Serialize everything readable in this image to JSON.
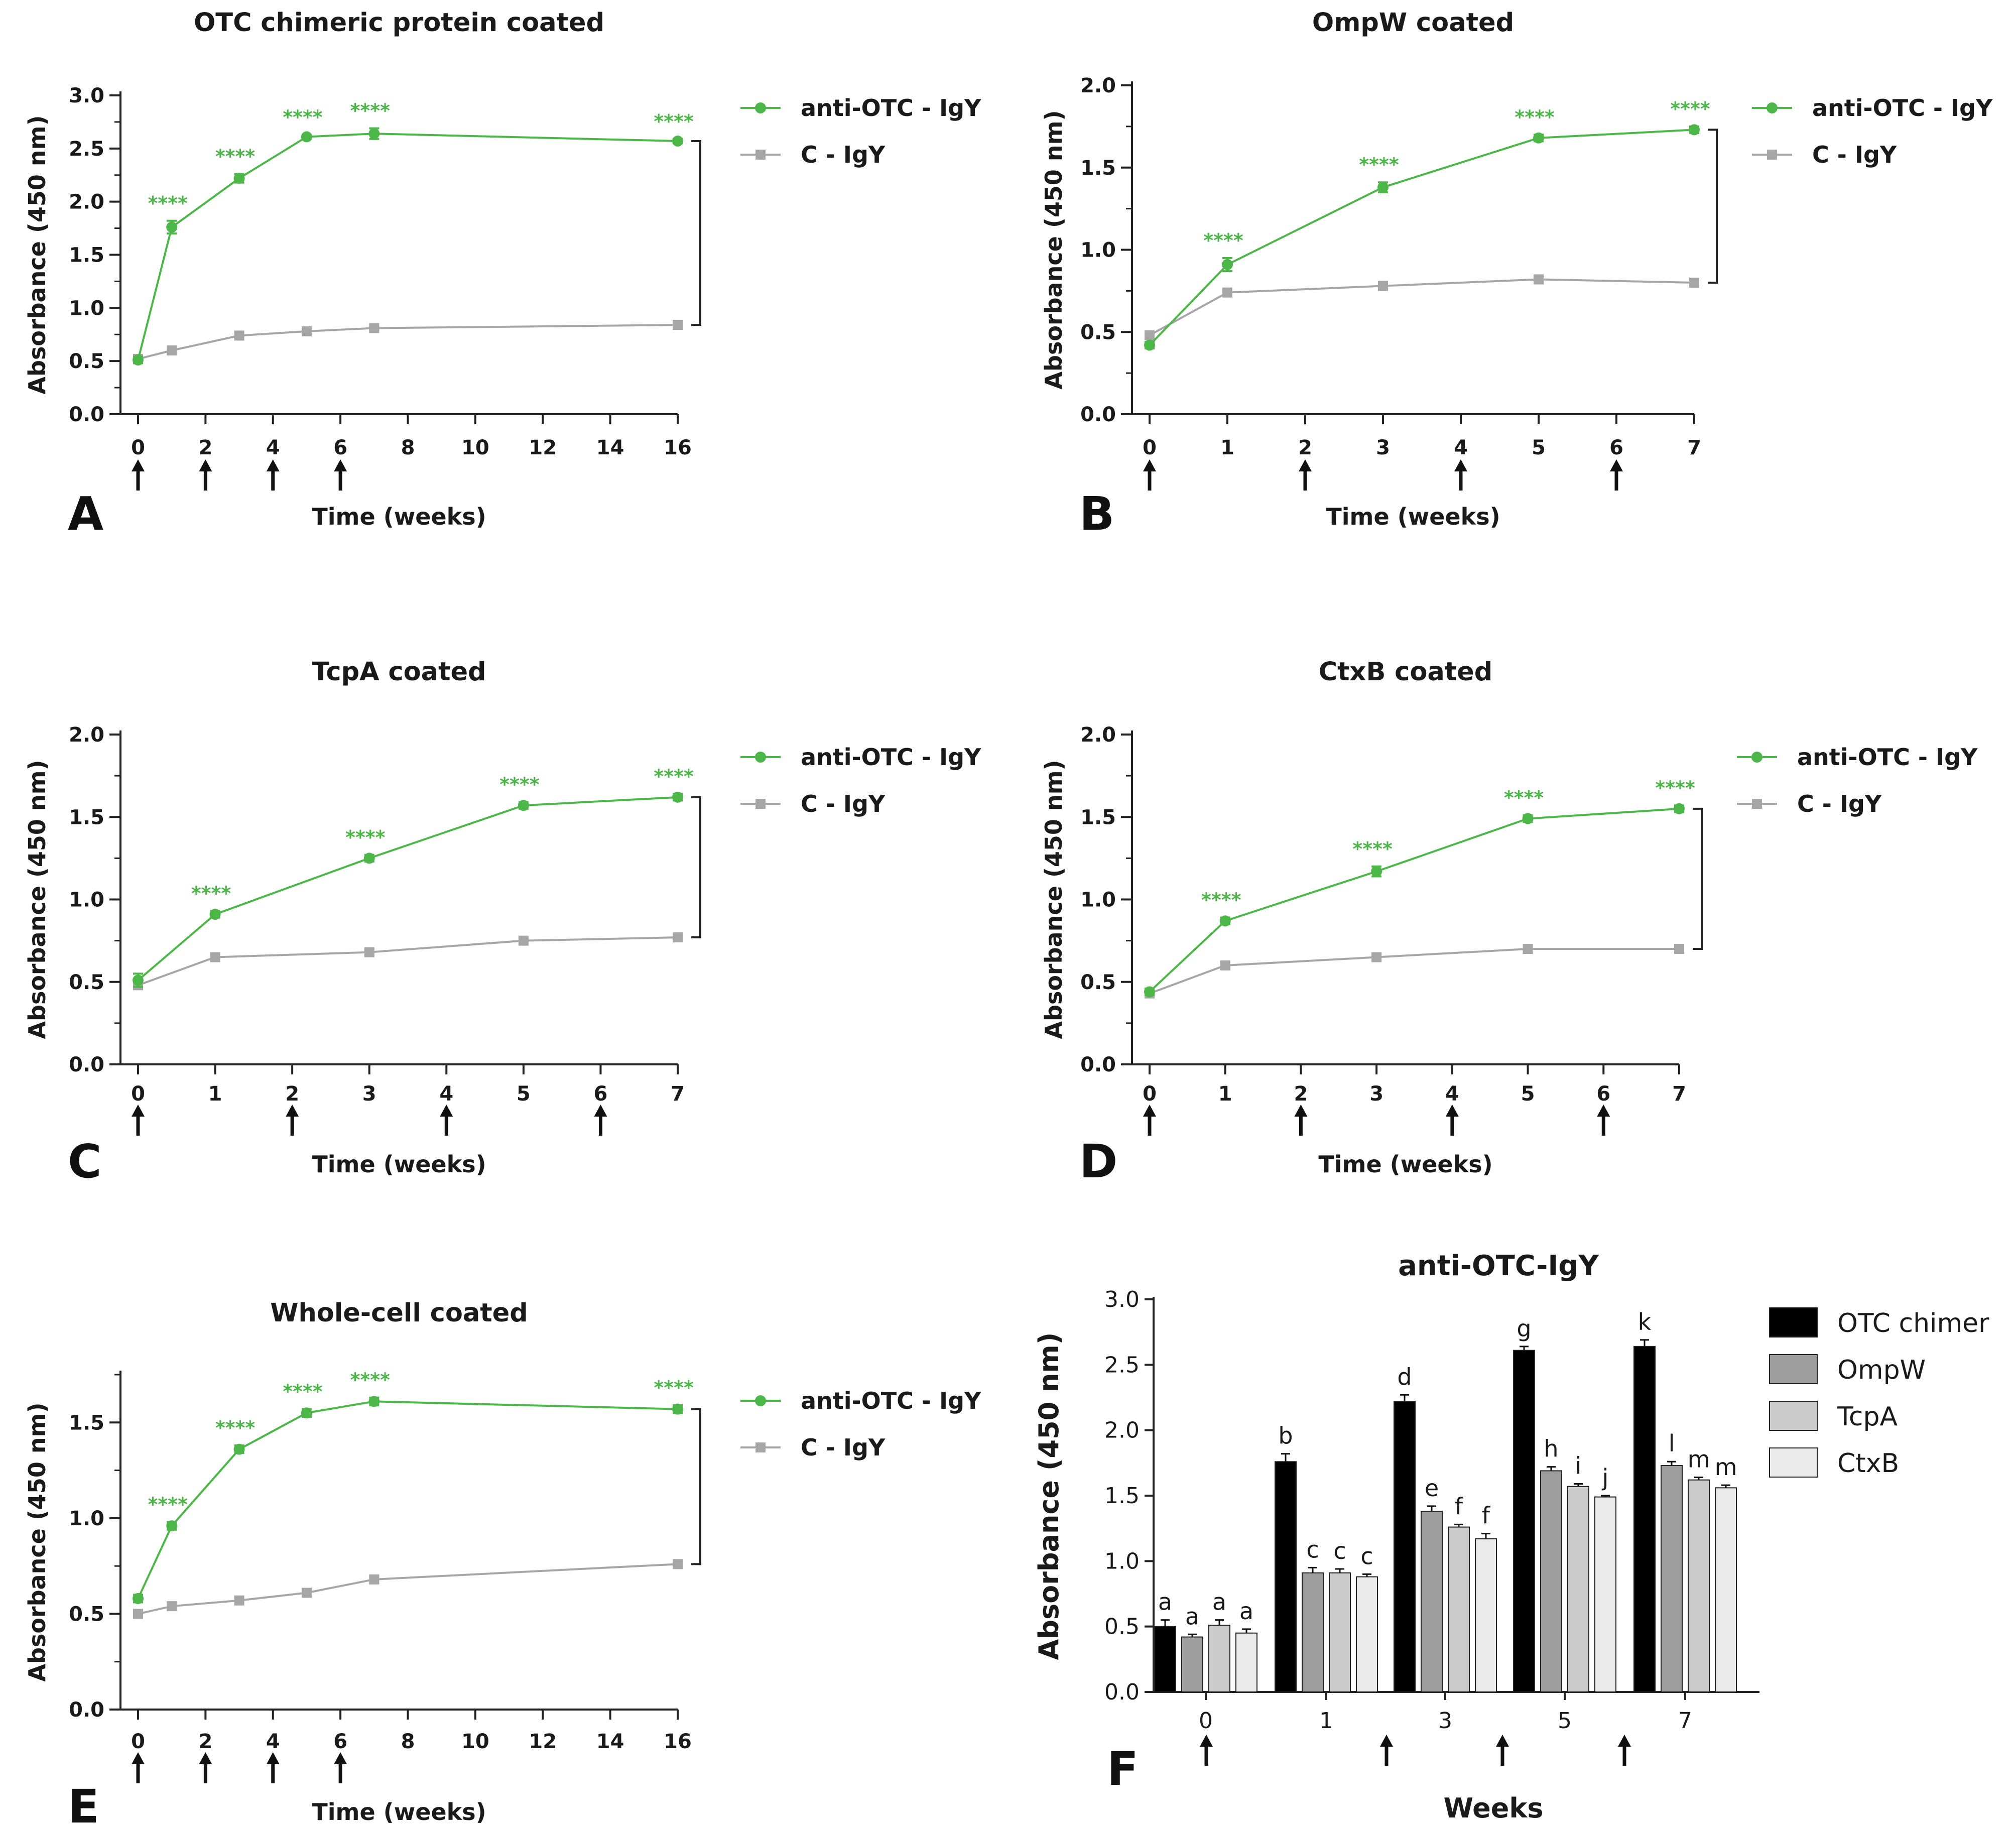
{
  "colors": {
    "anti": "#4cb748",
    "ctrl": "#a6a6a6",
    "axis": "#222222",
    "arrow": "#111111",
    "bar_otc": "#000000",
    "bar_ompw": "#9e9e9e",
    "bar_tcpa": "#cccccc",
    "bar_ctxb": "#ebebeb"
  },
  "chart_data": [
    {
      "id": "A",
      "type": "line",
      "title": "OTC chimeric protein coated",
      "xlabel": "Time (weeks)",
      "ylabel": "Absorbance (450 nm)",
      "xlim": [
        0,
        16
      ],
      "ylim": [
        0,
        3.0
      ],
      "xticks": [
        0,
        2,
        4,
        6,
        8,
        10,
        12,
        14,
        16
      ],
      "yticks": [
        0,
        0.5,
        1.0,
        1.5,
        2.0,
        2.5,
        3.0
      ],
      "yminor": 0.25,
      "ytick_labels": [
        "0.0",
        "0.5",
        "1.0",
        "1.5",
        "2.0",
        "2.5",
        "3.0"
      ],
      "xtick_labels": [
        "0",
        "2",
        "4",
        "6",
        "8",
        "10",
        "12",
        "14",
        "16"
      ],
      "arrows_at": [
        0,
        2,
        4,
        6
      ],
      "legend": [
        "anti-OTC - IgY",
        "C - IgY"
      ],
      "series": [
        {
          "name": "anti-OTC - IgY",
          "x": [
            0,
            1,
            3,
            5,
            7,
            16
          ],
          "y": [
            0.51,
            1.76,
            2.22,
            2.61,
            2.64,
            2.57
          ],
          "err": [
            0.03,
            0.06,
            0.04,
            0.02,
            0.05,
            0.02
          ]
        },
        {
          "name": "C - IgY",
          "x": [
            0,
            1,
            3,
            5,
            7,
            16
          ],
          "y": [
            0.52,
            0.6,
            0.74,
            0.78,
            0.81,
            0.84
          ],
          "err": [
            0.02,
            0.02,
            0.02,
            0.02,
            0.02,
            0.02
          ]
        }
      ],
      "annotations": [
        {
          "x": 1,
          "text": "****"
        },
        {
          "x": 3,
          "text": "****"
        },
        {
          "x": 5,
          "text": "****"
        },
        {
          "x": 7,
          "text": "****"
        },
        {
          "x": 16,
          "text": "****"
        }
      ],
      "bracket_y": [
        2.57,
        0.84
      ]
    },
    {
      "id": "B",
      "type": "line",
      "title": "OmpW coated",
      "xlabel": "Time (weeks)",
      "ylabel": "Absorbance (450 nm)",
      "xlim": [
        0,
        7
      ],
      "ylim": [
        0,
        2.0
      ],
      "xticks": [
        0,
        1,
        2,
        3,
        4,
        5,
        6,
        7
      ],
      "yticks": [
        0,
        0.5,
        1.0,
        1.5,
        2.0
      ],
      "yminor": 0.25,
      "ytick_labels": [
        "0.0",
        "0.5",
        "1.0",
        "1.5",
        "2.0"
      ],
      "xtick_labels": [
        "0",
        "1",
        "2",
        "3",
        "4",
        "5",
        "6",
        "7"
      ],
      "arrows_at": [
        0,
        2,
        4,
        6
      ],
      "legend": [
        "anti-OTC - IgY",
        "C - IgY"
      ],
      "series": [
        {
          "name": "anti-OTC - IgY",
          "x": [
            0,
            1,
            3,
            5,
            7
          ],
          "y": [
            0.42,
            0.91,
            1.38,
            1.68,
            1.73
          ],
          "err": [
            0.02,
            0.04,
            0.03,
            0.02,
            0.02
          ]
        },
        {
          "name": "C - IgY",
          "x": [
            0,
            1,
            3,
            5,
            7
          ],
          "y": [
            0.48,
            0.74,
            0.78,
            0.82,
            0.8
          ],
          "err": [
            0.02,
            0.02,
            0.02,
            0.02,
            0.02
          ]
        }
      ],
      "annotations": [
        {
          "x": 1,
          "text": "****"
        },
        {
          "x": 3,
          "text": "****"
        },
        {
          "x": 5,
          "text": "****"
        },
        {
          "x": 7,
          "text": "****"
        }
      ],
      "bracket_y": [
        1.73,
        0.8
      ]
    },
    {
      "id": "C",
      "type": "line",
      "title": "TcpA coated",
      "xlabel": "Time (weeks)",
      "ylabel": "Absorbance (450 nm)",
      "xlim": [
        0,
        7
      ],
      "ylim": [
        0,
        2.0
      ],
      "xticks": [
        0,
        1,
        2,
        3,
        4,
        5,
        6,
        7
      ],
      "yticks": [
        0,
        0.5,
        1.0,
        1.5,
        2.0
      ],
      "yminor": 0.25,
      "ytick_labels": [
        "0.0",
        "0.5",
        "1.0",
        "1.5",
        "2.0"
      ],
      "xtick_labels": [
        "0",
        "1",
        "2",
        "3",
        "4",
        "5",
        "6",
        "7"
      ],
      "arrows_at": [
        0,
        2,
        4,
        6
      ],
      "legend": [
        "anti-OTC - IgY",
        "C - IgY"
      ],
      "series": [
        {
          "name": "anti-OTC - IgY",
          "x": [
            0,
            1,
            3,
            5,
            7
          ],
          "y": [
            0.51,
            0.91,
            1.25,
            1.57,
            1.62
          ],
          "err": [
            0.04,
            0.02,
            0.02,
            0.02,
            0.02
          ]
        },
        {
          "name": "C - IgY",
          "x": [
            0,
            1,
            3,
            5,
            7
          ],
          "y": [
            0.48,
            0.65,
            0.68,
            0.75,
            0.77
          ],
          "err": [
            0.02,
            0.02,
            0.02,
            0.02,
            0.02
          ]
        }
      ],
      "annotations": [
        {
          "x": 1,
          "text": "****"
        },
        {
          "x": 3,
          "text": "****"
        },
        {
          "x": 5,
          "text": "****"
        },
        {
          "x": 7,
          "text": "****"
        }
      ],
      "bracket_y": [
        1.62,
        0.77
      ]
    },
    {
      "id": "D",
      "type": "line",
      "title": "CtxB coated",
      "xlabel": "Time (weeks)",
      "ylabel": "Absorbance (450 nm)",
      "xlim": [
        0,
        7
      ],
      "ylim": [
        0,
        2.0
      ],
      "xticks": [
        0,
        1,
        2,
        3,
        4,
        5,
        6,
        7
      ],
      "yticks": [
        0,
        0.5,
        1.0,
        1.5,
        2.0
      ],
      "yminor": 0.25,
      "ytick_labels": [
        "0.0",
        "0.5",
        "1.0",
        "1.5",
        "2.0"
      ],
      "xtick_labels": [
        "0",
        "1",
        "2",
        "3",
        "4",
        "5",
        "6",
        "7"
      ],
      "arrows_at": [
        0,
        2,
        4,
        6
      ],
      "legend": [
        "anti-OTC - IgY",
        "C - IgY"
      ],
      "series": [
        {
          "name": "anti-OTC - IgY",
          "x": [
            0,
            1,
            3,
            5,
            7
          ],
          "y": [
            0.44,
            0.87,
            1.17,
            1.49,
            1.55
          ],
          "err": [
            0.02,
            0.02,
            0.03,
            0.02,
            0.02
          ]
        },
        {
          "name": "C - IgY",
          "x": [
            0,
            1,
            3,
            5,
            7
          ],
          "y": [
            0.43,
            0.6,
            0.65,
            0.7,
            0.7
          ],
          "err": [
            0.02,
            0.02,
            0.02,
            0.02,
            0.02
          ]
        }
      ],
      "annotations": [
        {
          "x": 1,
          "text": "****"
        },
        {
          "x": 3,
          "text": "****"
        },
        {
          "x": 5,
          "text": "****"
        },
        {
          "x": 7,
          "text": "****"
        }
      ],
      "bracket_y": [
        1.55,
        0.7
      ]
    },
    {
      "id": "E",
      "type": "line",
      "title": "Whole-cell coated",
      "xlabel": "Time (weeks)",
      "ylabel": "Absorbance (450 nm)",
      "xlim": [
        0,
        16
      ],
      "ylim": [
        0,
        1.75
      ],
      "xticks": [
        0,
        2,
        4,
        6,
        8,
        10,
        12,
        14,
        16
      ],
      "yticks": [
        0,
        0.5,
        1.0,
        1.5
      ],
      "yminor": 0.25,
      "ytick_labels": [
        "0.0",
        "0.5",
        "1.0",
        "1.5"
      ],
      "xtick_labels": [
        "0",
        "2",
        "4",
        "6",
        "8",
        "10",
        "12",
        "14",
        "16"
      ],
      "arrows_at": [
        0,
        2,
        4,
        6
      ],
      "legend": [
        "anti-OTC - IgY",
        "C - IgY"
      ],
      "series": [
        {
          "name": "anti-OTC - IgY",
          "x": [
            0,
            1,
            3,
            5,
            7,
            16
          ],
          "y": [
            0.58,
            0.96,
            1.36,
            1.55,
            1.61,
            1.57
          ],
          "err": [
            0.02,
            0.02,
            0.02,
            0.02,
            0.02,
            0.02
          ]
        },
        {
          "name": "C - IgY",
          "x": [
            0,
            1,
            3,
            5,
            7,
            16
          ],
          "y": [
            0.5,
            0.54,
            0.57,
            0.61,
            0.68,
            0.76
          ],
          "err": [
            0.02,
            0.02,
            0.02,
            0.02,
            0.02,
            0.02
          ]
        }
      ],
      "annotations": [
        {
          "x": 1,
          "text": "****"
        },
        {
          "x": 3,
          "text": "****"
        },
        {
          "x": 5,
          "text": "****"
        },
        {
          "x": 7,
          "text": "****"
        },
        {
          "x": 16,
          "text": "****"
        }
      ],
      "bracket_y": [
        1.57,
        0.76
      ]
    },
    {
      "id": "F",
      "type": "bar",
      "title": "anti-OTC-IgY",
      "xlabel": "Weeks",
      "ylabel": "Absorbance (450 nm)",
      "ylim": [
        0,
        3.0
      ],
      "yticks": [
        0,
        0.5,
        1.0,
        1.5,
        2.0,
        2.5,
        3.0
      ],
      "ytick_labels": [
        "0.0",
        "0.5",
        "1.0",
        "1.5",
        "2.0",
        "2.5",
        "3.0"
      ],
      "categories": [
        "0",
        "1",
        "3",
        "5",
        "7"
      ],
      "arrows_between": [
        0,
        1.5,
        2.5,
        3.5
      ],
      "series": [
        {
          "name": "OTC chimer",
          "values": [
            0.5,
            1.76,
            2.22,
            2.61,
            2.64
          ],
          "err": [
            0.05,
            0.06,
            0.05,
            0.03,
            0.05
          ],
          "letters": [
            "a",
            "b",
            "d",
            "g",
            "k"
          ]
        },
        {
          "name": "OmpW",
          "values": [
            0.42,
            0.91,
            1.38,
            1.69,
            1.73
          ],
          "err": [
            0.02,
            0.04,
            0.04,
            0.03,
            0.03
          ],
          "letters": [
            "a",
            "c",
            "e",
            "h",
            "l"
          ]
        },
        {
          "name": "TcpA",
          "values": [
            0.51,
            0.91,
            1.26,
            1.57,
            1.62
          ],
          "err": [
            0.04,
            0.03,
            0.02,
            0.02,
            0.02
          ],
          "letters": [
            "a",
            "c",
            "f",
            "i",
            "m"
          ]
        },
        {
          "name": "CtxB",
          "values": [
            0.45,
            0.88,
            1.17,
            1.49,
            1.56
          ],
          "err": [
            0.03,
            0.02,
            0.04,
            0.01,
            0.02
          ],
          "letters": [
            "a",
            "c",
            "f",
            "j",
            "m"
          ]
        }
      ],
      "legend": [
        "OTC chimer",
        "OmpW",
        "TcpA",
        "CtxB"
      ]
    }
  ]
}
